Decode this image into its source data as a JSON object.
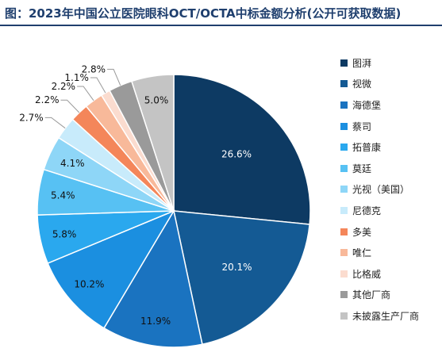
{
  "title": "图：2023年中国公立医院眼科OCT/OCTA中标金额分析(公开可获取数据)",
  "chart_data": {
    "type": "pie",
    "start_angle": "12 o'clock",
    "direction": "clockwise",
    "legend_position": "right",
    "slices": [
      {
        "label": "图湃",
        "value": 26.6,
        "display": "26.6%",
        "color": "#0d3a63"
      },
      {
        "label": "视微",
        "value": 20.1,
        "display": "20.1%",
        "color": "#145a94"
      },
      {
        "label": "海德堡",
        "value": 11.9,
        "display": "11.9%",
        "color": "#1a73c0"
      },
      {
        "label": "蔡司",
        "value": 10.2,
        "display": "10.2%",
        "color": "#1b8fe0"
      },
      {
        "label": "拓普康",
        "value": 5.8,
        "display": "5.8%",
        "color": "#2aa8ee"
      },
      {
        "label": "莫廷",
        "value": 5.4,
        "display": "5.4%",
        "color": "#57c1f3"
      },
      {
        "label": "光视（美国）",
        "value": 4.1,
        "display": "4.1%",
        "color": "#8ed6f7"
      },
      {
        "label": "尼德克",
        "value": 2.7,
        "display": "2.7%",
        "color": "#c8ebfb"
      },
      {
        "label": "多美",
        "value": 2.2,
        "display": "2.2%",
        "color": "#f4865a"
      },
      {
        "label": "唯仁",
        "value": 2.2,
        "display": "2.2%",
        "color": "#f8b99a"
      },
      {
        "label": "比格威",
        "value": 1.1,
        "display": "1.1%",
        "color": "#fbdccf"
      },
      {
        "label": "其他厂商",
        "value": 2.8,
        "display": "2.8%",
        "color": "#9a9a9a"
      },
      {
        "label": "未披露生产厂商",
        "value": 5.0,
        "display": "5.0%",
        "color": "#c4c4c4"
      }
    ]
  }
}
